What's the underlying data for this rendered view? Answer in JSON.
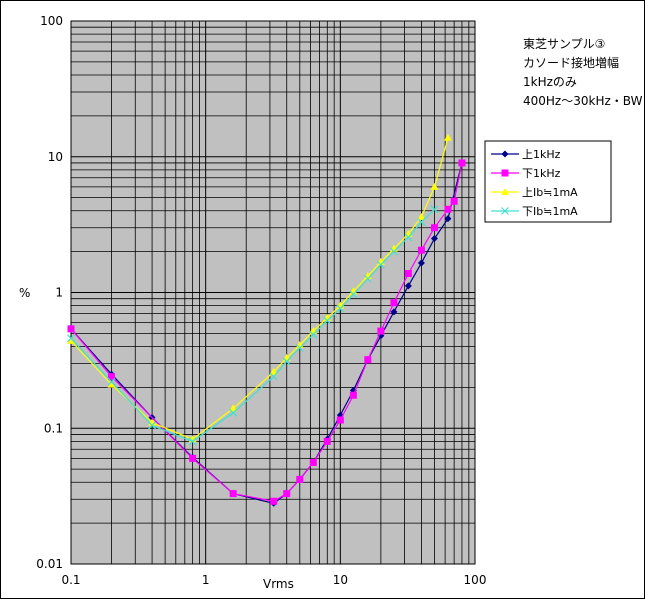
{
  "chart_data": {
    "type": "line",
    "title_lines": [
      "東芝サンプル③",
      "カソード接地増幅",
      "1kHzのみ",
      "400Hz～30kHz・BW"
    ],
    "xlabel": "Vrms",
    "ylabel": "%",
    "x_scale": "log",
    "y_scale": "log",
    "xlim": [
      0.1,
      100
    ],
    "ylim": [
      0.01,
      100
    ],
    "x_ticks": [
      "0.1",
      "1",
      "10",
      "100"
    ],
    "y_ticks": [
      "0.01",
      "0.1",
      "1",
      "10",
      "100"
    ],
    "grid": true,
    "plot_background": "#c0c0c0",
    "legend_position": "right",
    "series": [
      {
        "name": "上1kHz",
        "color": "#00008b",
        "marker": "diamond",
        "x": [
          0.1,
          0.2,
          0.4,
          0.8,
          1.6,
          3.2,
          4.0,
          5.0,
          6.3,
          8.0,
          10,
          12.5,
          16,
          20,
          25,
          32,
          40,
          50,
          63,
          80
        ],
        "y": [
          0.54,
          0.25,
          0.12,
          0.061,
          0.033,
          0.028,
          0.033,
          0.042,
          0.056,
          0.083,
          0.125,
          0.19,
          0.32,
          0.48,
          0.72,
          1.12,
          1.65,
          2.5,
          3.5,
          9.0
        ]
      },
      {
        "name": "下1kHz",
        "color": "#ff00ff",
        "marker": "square",
        "x": [
          0.1,
          0.2,
          0.8,
          1.6,
          3.2,
          4.0,
          5.0,
          6.3,
          8.0,
          10,
          12.5,
          16,
          20,
          25,
          32,
          40,
          50,
          63,
          70,
          80
        ],
        "y": [
          0.54,
          0.24,
          0.06,
          0.033,
          0.029,
          0.033,
          0.042,
          0.056,
          0.08,
          0.115,
          0.175,
          0.32,
          0.52,
          0.84,
          1.38,
          2.05,
          3.0,
          4.1,
          4.7,
          9.0
        ]
      },
      {
        "name": "上Ib≒1mA",
        "color": "#ffff00",
        "marker": "triangle",
        "x": [
          0.1,
          0.2,
          0.4,
          0.8,
          1.6,
          3.2,
          4.0,
          5.0,
          6.3,
          8.0,
          10,
          12.5,
          16,
          20,
          25,
          32,
          40,
          50,
          63
        ],
        "y": [
          0.44,
          0.21,
          0.11,
          0.083,
          0.14,
          0.26,
          0.33,
          0.41,
          0.52,
          0.65,
          0.8,
          1.02,
          1.32,
          1.68,
          2.1,
          2.7,
          3.6,
          6.0,
          13.8
        ]
      },
      {
        "name": "下Ib≒1mA",
        "color": "#40e0d0",
        "marker": "x",
        "x": [
          0.1,
          0.2,
          0.4,
          0.8,
          1.6,
          3.2,
          4.0,
          5.0,
          6.3,
          8.0,
          10,
          12.5,
          16,
          20,
          25,
          32,
          40,
          50
        ],
        "y": [
          0.46,
          0.22,
          0.105,
          0.08,
          0.13,
          0.24,
          0.31,
          0.39,
          0.49,
          0.62,
          0.76,
          0.97,
          1.26,
          1.6,
          2.0,
          2.55,
          3.3,
          4.1
        ]
      }
    ]
  }
}
